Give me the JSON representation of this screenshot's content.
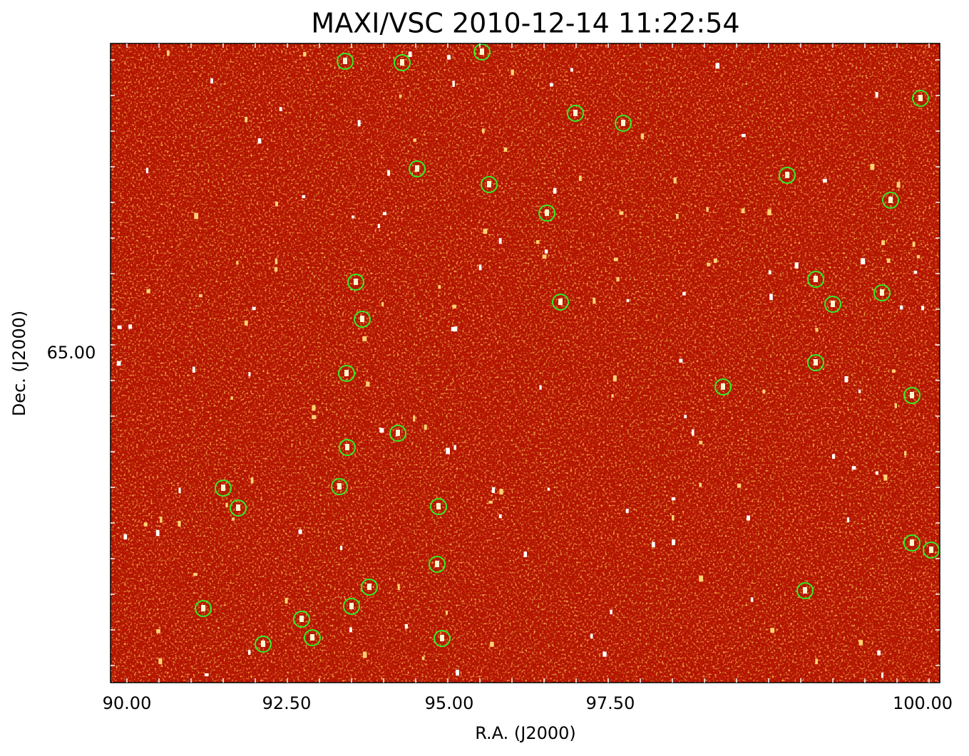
{
  "plot": {
    "title": "MAXI/VSC 2010-12-14 11:22:54",
    "x_axis": {
      "label": "R.A. (J2000)",
      "tick_labels": [
        "90.00",
        "92.50",
        "95.00",
        "97.50",
        "100.00"
      ]
    },
    "y_axis": {
      "label": "Dec. (J2000)",
      "tick_labels": [
        "65.00"
      ]
    }
  }
}
